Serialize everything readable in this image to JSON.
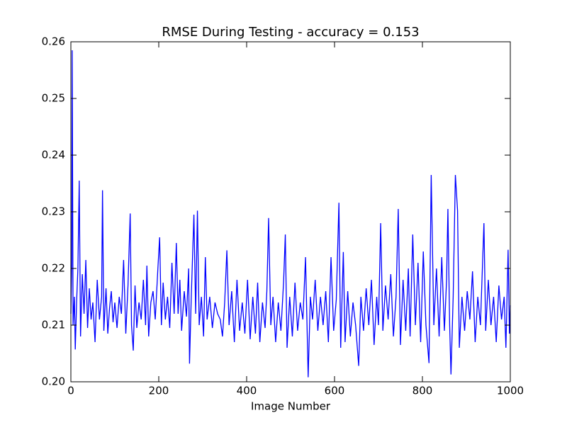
{
  "chart_data": {
    "type": "line",
    "title": "RMSE During Testing - accuracy = 0.153",
    "xlabel": "Image Number",
    "x": [
      0,
      2,
      3,
      5,
      8,
      10,
      13,
      16,
      19,
      22,
      26,
      30,
      34,
      38,
      42,
      46,
      50,
      55,
      60,
      65,
      70,
      72,
      75,
      80,
      84,
      88,
      92,
      96,
      100,
      105,
      110,
      115,
      120,
      125,
      130,
      135,
      138,
      142,
      146,
      150,
      155,
      160,
      165,
      170,
      173,
      177,
      182,
      187,
      192,
      198,
      202,
      206,
      210,
      215,
      220,
      225,
      230,
      235,
      240,
      244,
      248,
      252,
      258,
      263,
      268,
      270,
      274,
      280,
      284,
      288,
      292,
      297,
      302,
      306,
      310,
      316,
      322,
      328,
      334,
      340,
      345,
      350,
      355,
      360,
      366,
      372,
      378,
      384,
      390,
      396,
      402,
      408,
      414,
      420,
      425,
      430,
      436,
      442,
      446,
      450,
      455,
      460,
      466,
      472,
      478,
      484,
      488,
      492,
      498,
      504,
      510,
      516,
      522,
      528,
      534,
      540,
      545,
      550,
      556,
      562,
      568,
      574,
      580,
      586,
      592,
      598,
      604,
      610,
      614,
      620,
      624,
      630,
      636,
      642,
      648,
      655,
      660,
      666,
      672,
      678,
      684,
      690,
      696,
      700,
      705,
      710,
      716,
      722,
      728,
      734,
      740,
      745,
      750,
      756,
      762,
      768,
      772,
      778,
      784,
      790,
      796,
      802,
      808,
      815,
      820,
      826,
      832,
      838,
      844,
      850,
      855,
      858,
      862,
      865,
      870,
      875,
      880,
      884,
      890,
      896,
      902,
      908,
      914,
      920,
      926,
      932,
      940,
      944,
      950,
      956,
      962,
      968,
      974,
      980,
      986,
      990,
      995,
      998,
      1000
    ],
    "series": [
      {
        "name": "RMSE",
        "color": "#0000ff",
        "values": [
          0.212,
          0.221,
          0.2585,
          0.21,
          0.215,
          0.2057,
          0.214,
          0.22,
          0.2355,
          0.208,
          0.219,
          0.212,
          0.2215,
          0.2095,
          0.2165,
          0.211,
          0.214,
          0.207,
          0.218,
          0.211,
          0.215,
          0.2338,
          0.209,
          0.2165,
          0.2085,
          0.213,
          0.216,
          0.2105,
          0.214,
          0.2095,
          0.215,
          0.212,
          0.2215,
          0.2085,
          0.217,
          0.2297,
          0.21,
          0.2055,
          0.217,
          0.2095,
          0.214,
          0.211,
          0.218,
          0.21,
          0.2205,
          0.208,
          0.214,
          0.216,
          0.211,
          0.22,
          0.2255,
          0.21,
          0.2175,
          0.211,
          0.215,
          0.2095,
          0.221,
          0.212,
          0.2245,
          0.212,
          0.218,
          0.209,
          0.216,
          0.2115,
          0.22,
          0.2032,
          0.215,
          0.2295,
          0.212,
          0.2302,
          0.21,
          0.215,
          0.208,
          0.222,
          0.211,
          0.215,
          0.2095,
          0.214,
          0.212,
          0.211,
          0.208,
          0.214,
          0.2232,
          0.21,
          0.216,
          0.207,
          0.218,
          0.209,
          0.214,
          0.2085,
          0.218,
          0.2075,
          0.215,
          0.2085,
          0.2175,
          0.207,
          0.214,
          0.2095,
          0.216,
          0.2289,
          0.21,
          0.215,
          0.207,
          0.214,
          0.209,
          0.2175,
          0.226,
          0.206,
          0.215,
          0.208,
          0.2175,
          0.209,
          0.214,
          0.211,
          0.222,
          0.2008,
          0.215,
          0.211,
          0.218,
          0.209,
          0.215,
          0.21,
          0.216,
          0.207,
          0.222,
          0.209,
          0.2145,
          0.2316,
          0.206,
          0.2229,
          0.207,
          0.216,
          0.208,
          0.214,
          0.21,
          0.2028,
          0.215,
          0.209,
          0.2165,
          0.21,
          0.218,
          0.2065,
          0.215,
          0.21,
          0.228,
          0.209,
          0.217,
          0.211,
          0.219,
          0.208,
          0.215,
          0.2305,
          0.2065,
          0.218,
          0.209,
          0.22,
          0.208,
          0.226,
          0.21,
          0.221,
          0.207,
          0.223,
          0.21,
          0.2033,
          0.2365,
          0.21,
          0.22,
          0.208,
          0.222,
          0.209,
          0.218,
          0.2305,
          0.21,
          0.2013,
          0.215,
          0.2365,
          0.2302,
          0.206,
          0.215,
          0.209,
          0.216,
          0.211,
          0.2195,
          0.207,
          0.215,
          0.21,
          0.228,
          0.209,
          0.218,
          0.21,
          0.215,
          0.207,
          0.217,
          0.211,
          0.215,
          0.206,
          0.2233,
          0.2085,
          0.2135
        ]
      }
    ],
    "xlim": [
      0,
      1000
    ],
    "xticks": [
      0,
      200,
      400,
      600,
      800,
      1000
    ],
    "ylim": [
      0.2,
      0.26
    ],
    "yticks": [
      {
        "value": 0.2,
        "label": "0.20"
      },
      0.21,
      0.22,
      0.23,
      0.24,
      0.25,
      0.26
    ]
  }
}
